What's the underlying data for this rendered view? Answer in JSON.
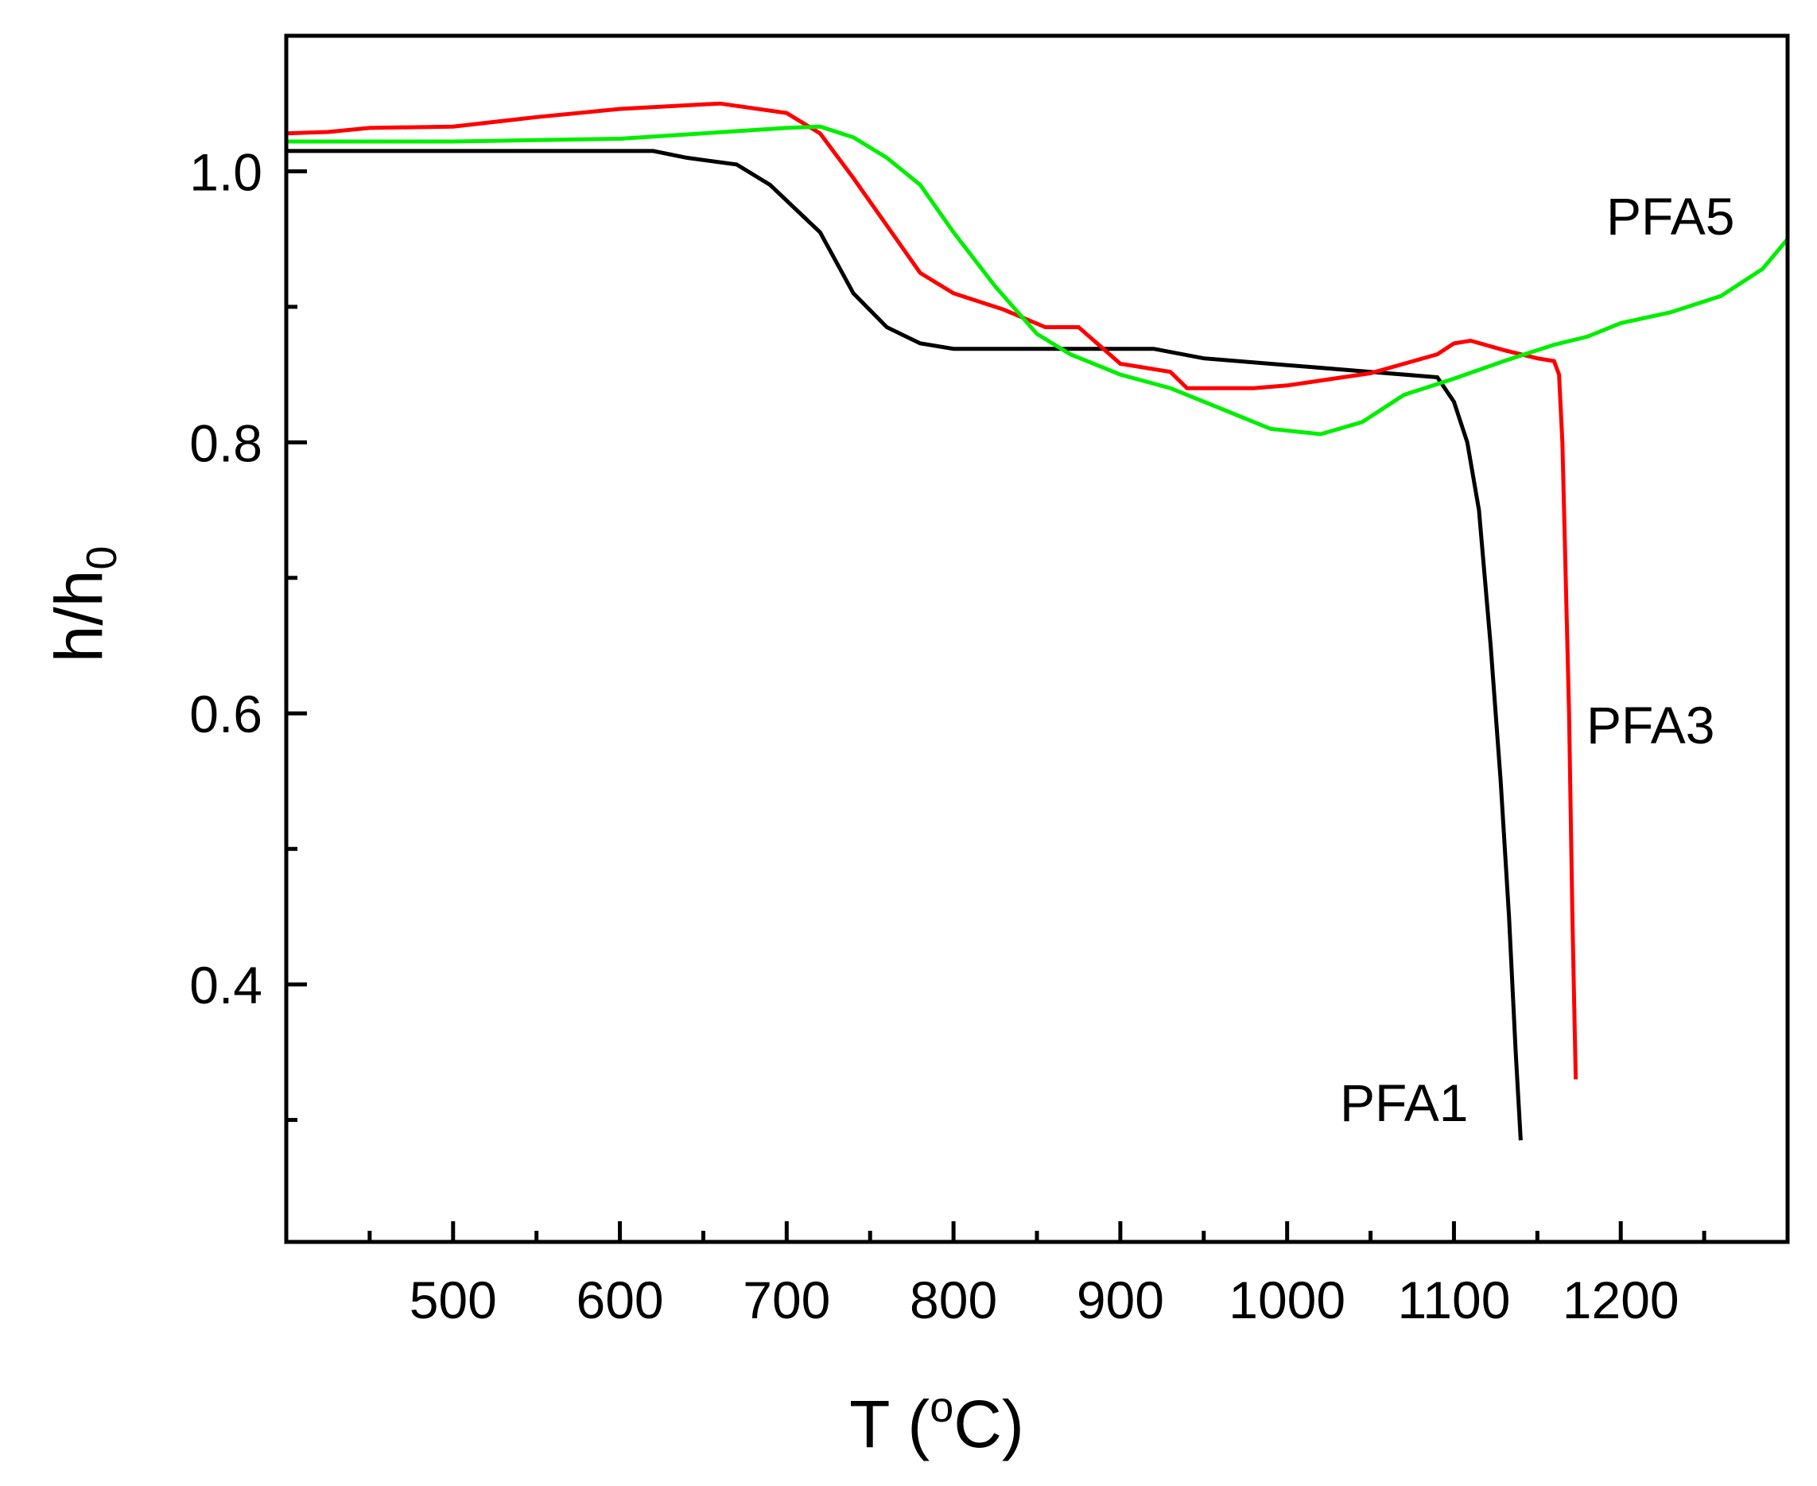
{
  "chart_data": {
    "type": "line",
    "title": "",
    "xlabel": "T (",
    "xlabel_sup": "o",
    "xlabel_tail": "C)",
    "ylabel": "h/h",
    "ylabel_sub": "0",
    "xlim": [
      400,
      1300
    ],
    "ylim": [
      0.21,
      1.1
    ],
    "x_ticks": [
      500,
      600,
      700,
      800,
      900,
      1000,
      1100,
      1200
    ],
    "x_tick_labels": [
      "500",
      "600",
      "700",
      "800",
      "900",
      "1000",
      "1100",
      "1200"
    ],
    "x_minor_ticks": [
      450,
      550,
      650,
      750,
      850,
      950,
      1050,
      1150,
      1250
    ],
    "y_ticks": [
      0.4,
      0.6,
      0.8,
      1.0
    ],
    "y_tick_labels": [
      "0.4",
      "0.6",
      "0.8",
      "1.0"
    ],
    "y_minor_ticks": [
      0.3,
      0.5,
      0.7,
      0.9
    ],
    "series": [
      {
        "name": "PFA1",
        "color": "#000000",
        "points": [
          [
            400,
            1.015
          ],
          [
            500,
            1.015
          ],
          [
            620,
            1.015
          ],
          [
            640,
            1.01
          ],
          [
            670,
            1.005
          ],
          [
            690,
            0.99
          ],
          [
            720,
            0.955
          ],
          [
            740,
            0.91
          ],
          [
            760,
            0.885
          ],
          [
            780,
            0.873
          ],
          [
            800,
            0.869
          ],
          [
            850,
            0.869
          ],
          [
            920,
            0.869
          ],
          [
            950,
            0.862
          ],
          [
            1000,
            0.857
          ],
          [
            1050,
            0.852
          ],
          [
            1090,
            0.848
          ],
          [
            1100,
            0.83
          ],
          [
            1108,
            0.8
          ],
          [
            1115,
            0.75
          ],
          [
            1122,
            0.65
          ],
          [
            1128,
            0.55
          ],
          [
            1133,
            0.45
          ],
          [
            1137,
            0.35
          ],
          [
            1140,
            0.285
          ]
        ]
      },
      {
        "name": "PFA3",
        "color": "#ff0000",
        "points": [
          [
            400,
            1.028
          ],
          [
            425,
            1.029
          ],
          [
            450,
            1.032
          ],
          [
            500,
            1.033
          ],
          [
            550,
            1.04
          ],
          [
            600,
            1.046
          ],
          [
            660,
            1.05
          ],
          [
            700,
            1.043
          ],
          [
            720,
            1.028
          ],
          [
            740,
            0.995
          ],
          [
            760,
            0.96
          ],
          [
            780,
            0.925
          ],
          [
            800,
            0.91
          ],
          [
            830,
            0.898
          ],
          [
            855,
            0.885
          ],
          [
            875,
            0.885
          ],
          [
            900,
            0.858
          ],
          [
            930,
            0.852
          ],
          [
            940,
            0.84
          ],
          [
            980,
            0.84
          ],
          [
            1000,
            0.842
          ],
          [
            1050,
            0.851
          ],
          [
            1090,
            0.865
          ],
          [
            1100,
            0.873
          ],
          [
            1110,
            0.875
          ],
          [
            1130,
            0.868
          ],
          [
            1150,
            0.862
          ],
          [
            1160,
            0.86
          ],
          [
            1163,
            0.85
          ],
          [
            1165,
            0.8
          ],
          [
            1167,
            0.7
          ],
          [
            1169,
            0.6
          ],
          [
            1171,
            0.45
          ],
          [
            1173,
            0.33
          ]
        ]
      },
      {
        "name": "PFA5",
        "color": "#00ee00",
        "points": [
          [
            400,
            1.022
          ],
          [
            500,
            1.022
          ],
          [
            600,
            1.024
          ],
          [
            700,
            1.032
          ],
          [
            720,
            1.033
          ],
          [
            740,
            1.025
          ],
          [
            760,
            1.01
          ],
          [
            780,
            0.99
          ],
          [
            800,
            0.955
          ],
          [
            825,
            0.915
          ],
          [
            850,
            0.88
          ],
          [
            870,
            0.865
          ],
          [
            900,
            0.85
          ],
          [
            930,
            0.84
          ],
          [
            960,
            0.825
          ],
          [
            990,
            0.81
          ],
          [
            1020,
            0.806
          ],
          [
            1045,
            0.815
          ],
          [
            1070,
            0.835
          ],
          [
            1100,
            0.847
          ],
          [
            1130,
            0.86
          ],
          [
            1160,
            0.872
          ],
          [
            1180,
            0.878
          ],
          [
            1200,
            0.888
          ],
          [
            1230,
            0.896
          ],
          [
            1260,
            0.908
          ],
          [
            1285,
            0.928
          ],
          [
            1300,
            0.95
          ]
        ]
      }
    ],
    "annotations": [
      {
        "text": "PFA5",
        "series": "PFA5"
      },
      {
        "text": "PFA3",
        "series": "PFA3"
      },
      {
        "text": "PFA1",
        "series": "PFA1"
      }
    ]
  }
}
